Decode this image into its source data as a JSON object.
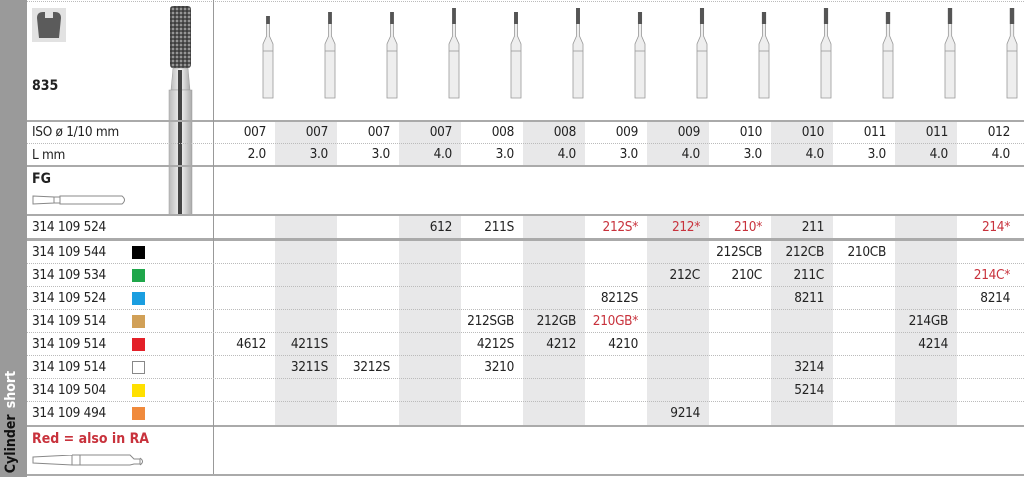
{
  "product": {
    "code": "835",
    "shank_type": "FG",
    "shape_label_1": "Cylinder",
    "shape_label_2": "short",
    "note": "Red = also in RA",
    "note_color": "#c8323c",
    "shape_icon": "cylinder-shape-icon"
  },
  "header_labels": {
    "iso": "ISO ø 1/10 mm",
    "length": "L mm"
  },
  "columns": [
    {
      "iso": "007",
      "l": "2.0"
    },
    {
      "iso": "007",
      "l": "3.0"
    },
    {
      "iso": "007",
      "l": "3.0"
    },
    {
      "iso": "007",
      "l": "4.0"
    },
    {
      "iso": "008",
      "l": "3.0"
    },
    {
      "iso": "008",
      "l": "4.0"
    },
    {
      "iso": "009",
      "l": "3.0"
    },
    {
      "iso": "009",
      "l": "4.0"
    },
    {
      "iso": "010",
      "l": "3.0"
    },
    {
      "iso": "010",
      "l": "4.0"
    },
    {
      "iso": "011",
      "l": "3.0"
    },
    {
      "iso": "011",
      "l": "4.0"
    },
    {
      "iso": "012",
      "l": "4.0"
    }
  ],
  "rows": [
    {
      "ref": "314 109 524",
      "color": null,
      "cells": [
        "",
        "",
        "",
        "612",
        "211S",
        "",
        "212S*",
        "212*",
        "210*",
        "211",
        "",
        "",
        "214*"
      ]
    },
    {
      "ref": "314 109 544",
      "color": "#000000",
      "cells": [
        "",
        "",
        "",
        "",
        "",
        "",
        "",
        "",
        "212SCB",
        "212CB",
        "210CB",
        "",
        ""
      ]
    },
    {
      "ref": "314 109 534",
      "color": "#1fa64a",
      "cells": [
        "",
        "",
        "",
        "",
        "",
        "",
        "",
        "212C",
        "210C",
        "211C",
        "",
        "",
        "214C*"
      ]
    },
    {
      "ref": "314 109 524",
      "color": "#1a9ee0",
      "cells": [
        "",
        "",
        "",
        "",
        "",
        "",
        "8212S",
        "",
        "",
        "8211",
        "",
        "",
        "8214"
      ]
    },
    {
      "ref": "314 109 514",
      "color": "#d1a057",
      "cells": [
        "",
        "",
        "",
        "",
        "212SGB",
        "212GB",
        "210GB*",
        "",
        "",
        "",
        "",
        "214GB",
        ""
      ]
    },
    {
      "ref": "314 109 514",
      "color": "#e32028",
      "cells": [
        "4612",
        "4211S",
        "",
        "",
        "4212S",
        "4212",
        "4210",
        "",
        "",
        "",
        "",
        "4214",
        ""
      ]
    },
    {
      "ref": "314 109 514",
      "color": "#ffffff",
      "cells": [
        "",
        "3211S",
        "3212S",
        "",
        "3210",
        "",
        "",
        "",
        "",
        "3214",
        "",
        "",
        ""
      ]
    },
    {
      "ref": "314 109 504",
      "color": "#ffe000",
      "cells": [
        "",
        "",
        "",
        "",
        "",
        "",
        "",
        "",
        "",
        "5214",
        "",
        "",
        ""
      ]
    },
    {
      "ref": "314 109 494",
      "color": "#f08a3c",
      "cells": [
        "",
        "",
        "",
        "",
        "",
        "",
        "",
        "9214",
        "",
        "",
        "",
        "",
        ""
      ]
    }
  ],
  "red_marker": "*",
  "colors": {
    "shade": "#e8e8e9",
    "sidebar": "#9a9a9a",
    "red_text": "#c8323c"
  }
}
